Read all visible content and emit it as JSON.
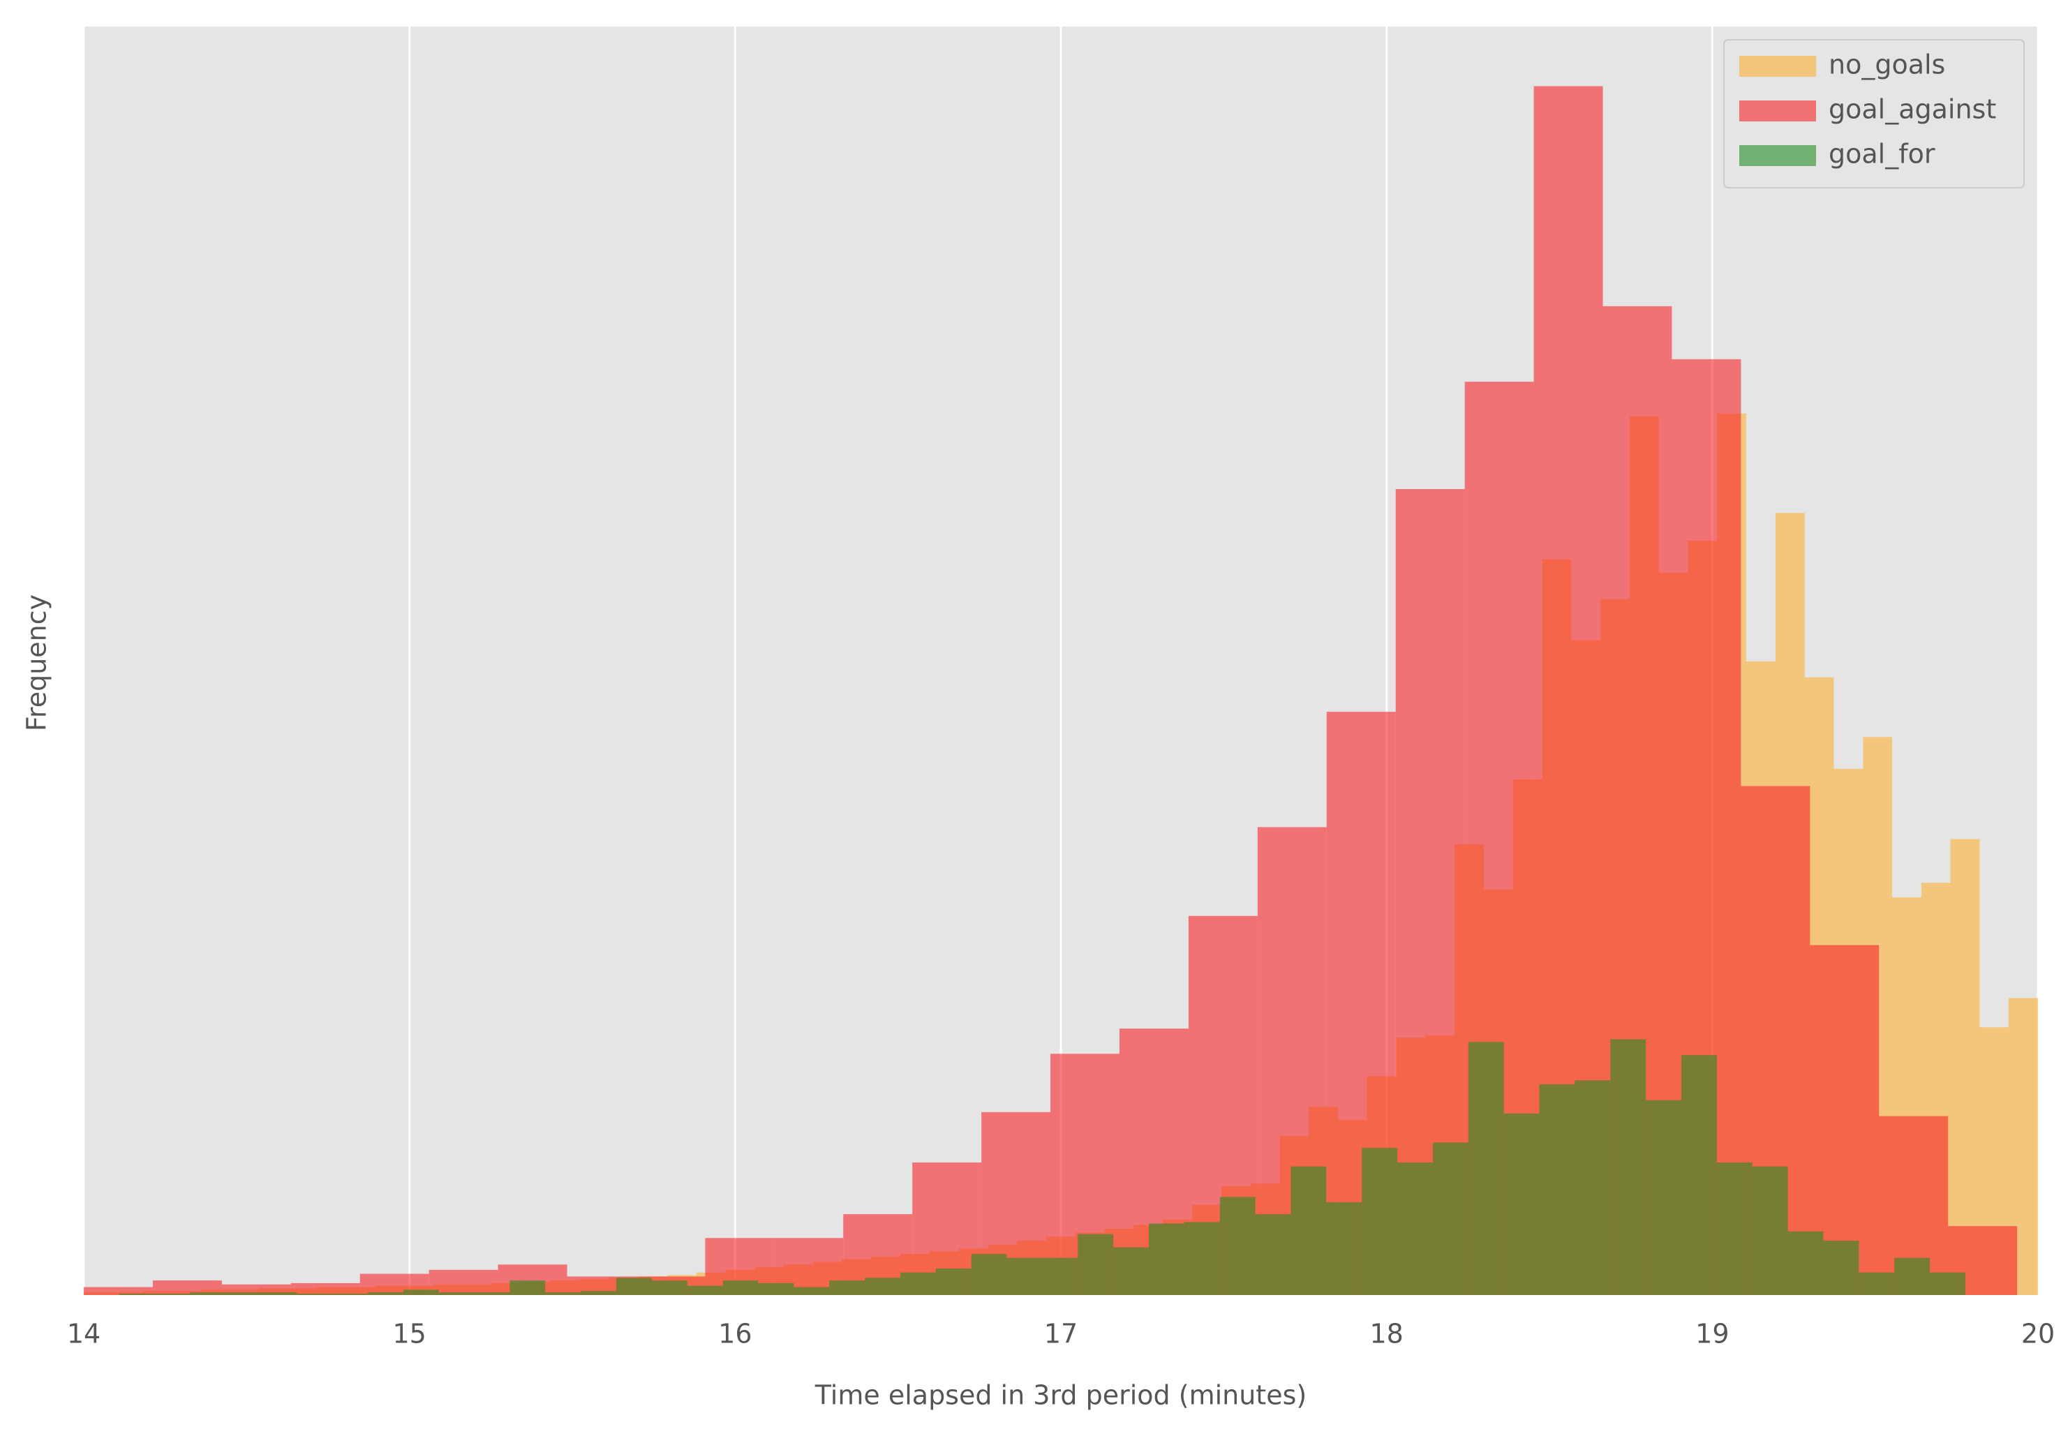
{
  "chart_data": {
    "type": "histogram",
    "xlabel": "Time elapsed in 3rd period (minutes)",
    "ylabel": "Frequency",
    "xlim": [
      14,
      20
    ],
    "xticks": [
      14,
      15,
      16,
      17,
      18,
      19,
      20
    ],
    "ylim": [
      0,
      957
    ],
    "grid": true,
    "legend": "upper right",
    "series": [
      {
        "name": "no_goals",
        "color": "#fcb033",
        "bins": [
          14,
          14.09,
          14.179,
          14.269,
          14.358,
          14.448,
          14.537,
          14.627,
          14.716,
          14.806,
          14.896,
          14.985,
          15.075,
          15.164,
          15.254,
          15.343,
          15.433,
          15.522,
          15.612,
          15.701,
          15.791,
          15.881,
          15.97,
          16.06,
          16.149,
          16.239,
          16.328,
          16.418,
          16.507,
          16.597,
          16.687,
          16.776,
          16.866,
          16.955,
          17.045,
          17.134,
          17.224,
          17.313,
          17.403,
          17.493,
          17.582,
          17.672,
          17.761,
          17.851,
          17.94,
          18.03,
          18.119,
          18.209,
          18.299,
          18.388,
          18.478,
          18.567,
          18.657,
          18.746,
          18.836,
          18.925,
          19.015,
          19.104,
          19.194,
          19.284,
          19.373,
          19.463,
          19.552,
          19.642,
          19.731,
          19.821,
          19.91,
          20.0
        ],
        "values": [
          2,
          2,
          3,
          3,
          4,
          4,
          5,
          5,
          6,
          6,
          7,
          7,
          8,
          8,
          9,
          10,
          11,
          12,
          13,
          14,
          15,
          17,
          19,
          21,
          23,
          25,
          27,
          29,
          31,
          33,
          35,
          38,
          41,
          44,
          47,
          50,
          53,
          57,
          68,
          82,
          84,
          120,
          142,
          132,
          165,
          194,
          196,
          340,
          306,
          389,
          555,
          494,
          525,
          663,
          545,
          569,
          665,
          478,
          590,
          466,
          397,
          421,
          300,
          311,
          344,
          202,
          224
        ]
      },
      {
        "name": "goal_against",
        "color": "#f7252a",
        "bins": [
          14,
          14.212,
          14.424,
          14.636,
          14.848,
          15.06,
          15.272,
          15.484,
          15.696,
          15.908,
          16.12,
          16.332,
          16.544,
          16.756,
          16.968,
          17.18,
          17.392,
          17.604,
          17.816,
          18.028,
          18.24,
          18.452,
          18.664,
          18.876,
          19.088,
          19.3,
          19.512,
          19.724,
          19.936
        ],
        "values": [
          6,
          11,
          8,
          9,
          16,
          19,
          23,
          14,
          14,
          43,
          43,
          61,
          100,
          138,
          182,
          201,
          286,
          353,
          440,
          608,
          689,
          912,
          746,
          706,
          384,
          264,
          135,
          52
        ]
      },
      {
        "name": "goal_for",
        "color": "#258d27",
        "bins": [
          14,
          14.109,
          14.218,
          14.327,
          14.436,
          14.545,
          14.654,
          14.763,
          14.872,
          14.981,
          15.09,
          15.199,
          15.308,
          15.417,
          15.526,
          15.635,
          15.744,
          15.853,
          15.962,
          16.071,
          16.18,
          16.289,
          16.398,
          16.507,
          16.616,
          16.725,
          16.834,
          16.943,
          17.052,
          17.161,
          17.27,
          17.379,
          17.488,
          17.597,
          17.706,
          17.815,
          17.924,
          18.033,
          18.142,
          18.251,
          18.36,
          18.469,
          18.578,
          18.687,
          18.796,
          18.905,
          19.014,
          19.123,
          19.232,
          19.341,
          19.45,
          19.559,
          19.668,
          19.777
        ],
        "values": [
          0,
          1,
          1,
          2,
          2,
          2,
          1,
          1,
          2,
          4,
          2,
          2,
          11,
          2,
          3,
          13,
          11,
          7,
          11,
          9,
          6,
          11,
          13,
          17,
          20,
          31,
          28,
          28,
          46,
          36,
          54,
          55,
          74,
          61,
          97,
          70,
          111,
          100,
          115,
          191,
          137,
          159,
          162,
          193,
          147,
          181,
          100,
          97,
          48,
          41,
          17,
          28,
          17
        ]
      }
    ]
  }
}
